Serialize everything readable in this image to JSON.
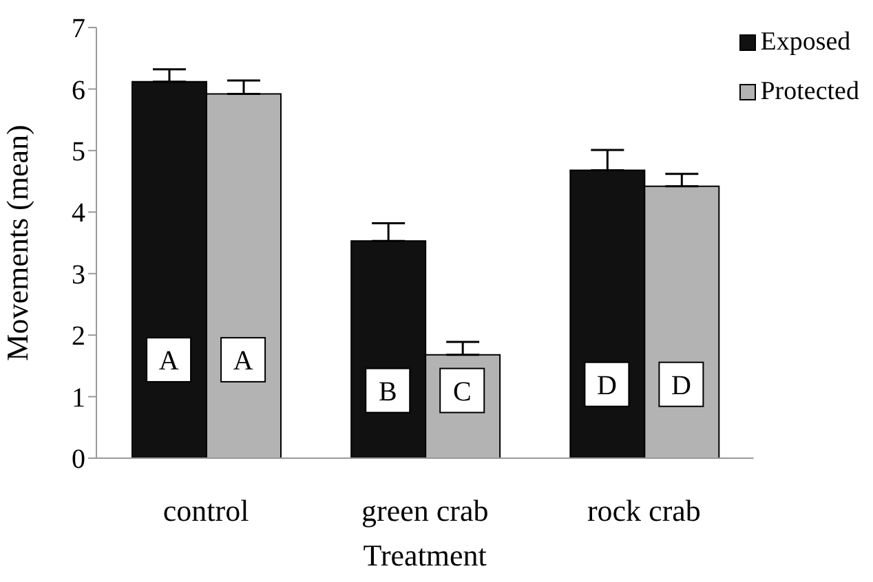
{
  "chart_data": {
    "type": "bar",
    "xlabel": "Treatment",
    "ylabel": "Movements (mean)",
    "categories": [
      "control",
      "green crab",
      "rock crab"
    ],
    "series": [
      {
        "name": "Exposed",
        "color": "#111111",
        "values": [
          6.12,
          3.53,
          4.68
        ],
        "errors": [
          [
            6.12,
            6.32
          ],
          [
            3.53,
            3.82
          ],
          [
            4.68,
            5.01
          ]
        ]
      },
      {
        "name": "Protected",
        "color": "#b3b3b3",
        "values": [
          5.92,
          1.68,
          4.42
        ],
        "errors": [
          [
            5.92,
            6.14
          ],
          [
            1.68,
            1.89
          ],
          [
            4.42,
            4.62
          ]
        ]
      }
    ],
    "annotations": [
      {
        "text": "A",
        "x": "control",
        "y": 1.6
      },
      {
        "text": "A",
        "x": "control",
        "y": 1.6
      },
      {
        "text": "B",
        "x": "green crab",
        "y": 1.1
      },
      {
        "text": "C",
        "x": "green crab",
        "y": 1.1
      },
      {
        "text": "D",
        "x": "rock crab",
        "y": 1.2
      },
      {
        "text": "D",
        "x": "rock crab",
        "y": 1.2
      }
    ],
    "ylim": [
      0,
      7
    ],
    "yticks": [
      0,
      1,
      2,
      3,
      4,
      5,
      6,
      7
    ],
    "legend": "top right",
    "grid": false
  }
}
